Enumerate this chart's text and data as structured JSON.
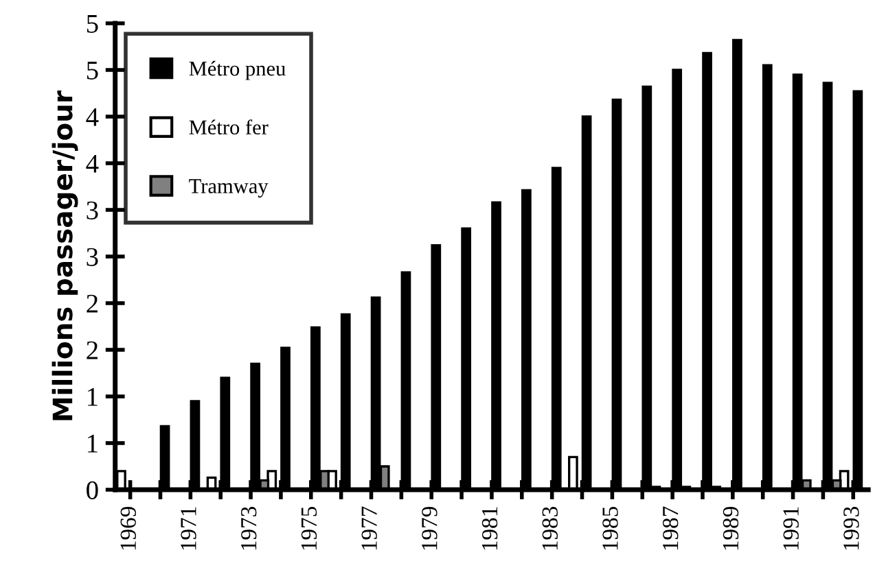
{
  "chart_data": {
    "type": "bar",
    "ylabel": "Millions passager/jour",
    "categories": [
      "1969",
      null,
      "1971",
      null,
      "1973",
      null,
      "1975",
      null,
      "1977",
      null,
      "1979",
      null,
      "1981",
      null,
      "1983",
      null,
      "1985",
      null,
      "1987",
      null,
      "1989",
      null,
      "1991",
      null,
      "1993"
    ],
    "series": [
      {
        "name": "Métro pneu",
        "color": "#000000",
        "values": [
          null,
          0.68,
          0.95,
          1.2,
          1.35,
          1.52,
          1.74,
          1.88,
          2.06,
          2.33,
          2.62,
          2.8,
          3.08,
          3.21,
          3.45,
          4.0,
          4.18,
          4.32,
          4.5,
          4.68,
          4.82,
          4.55,
          4.45,
          4.36,
          4.27
        ]
      },
      {
        "name": "Métro fer",
        "color": "#ffffff",
        "values": [
          0.2,
          null,
          null,
          0.13,
          null,
          0.2,
          null,
          0.2,
          null,
          null,
          null,
          null,
          null,
          null,
          null,
          0.35,
          null,
          null,
          null,
          null,
          null,
          null,
          null,
          null,
          0.2
        ]
      },
      {
        "name": "Tramway",
        "color": "#808080",
        "values": [
          null,
          null,
          null,
          null,
          0.1,
          null,
          0.2,
          null,
          0.25,
          null,
          null,
          null,
          null,
          null,
          null,
          null,
          null,
          0.03,
          0.03,
          0.03,
          null,
          null,
          0.1,
          0.1,
          null
        ]
      }
    ],
    "ylim": [
      0,
      5
    ],
    "yticks": [
      0,
      {
        "value": 0.5,
        "label": "1"
      },
      1,
      {
        "value": 1.5,
        "label": "2"
      },
      2,
      {
        "value": 2.5,
        "label": "3"
      },
      3,
      {
        "value": 3.5,
        "label": "4"
      },
      4,
      {
        "value": 4.5,
        "label": "5"
      },
      5
    ],
    "legend": "top left",
    "grid": false
  }
}
